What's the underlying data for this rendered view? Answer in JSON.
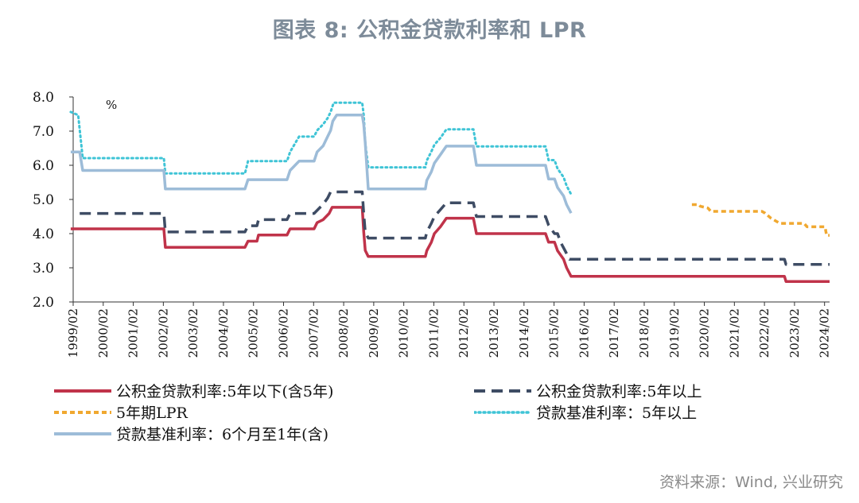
{
  "title": "图表 8:  公积金贷款利率和 LPR",
  "source": "资料来源：Wind, 兴业研究",
  "chart_data": {
    "type": "line",
    "unit_label": "%",
    "ylim": [
      2.0,
      8.0
    ],
    "yticks": [
      "2.0",
      "3.0",
      "4.0",
      "5.0",
      "6.0",
      "7.0",
      "8.0"
    ],
    "x_start": 1999.083,
    "x_end": 2024.25,
    "xtick_labels": [
      "1999/02",
      "2000/02",
      "2001/02",
      "2002/02",
      "2003/02",
      "2004/02",
      "2005/02",
      "2006/02",
      "2007/02",
      "2008/02",
      "2009/02",
      "2010/02",
      "2011/02",
      "2012/02",
      "2013/02",
      "2014/02",
      "2015/02",
      "2016/02",
      "2017/02",
      "2018/02",
      "2019/02",
      "2020/02",
      "2021/02",
      "2022/02",
      "2023/02",
      "2024/02"
    ],
    "grid": false,
    "series": [
      {
        "name": "公积金贷款利率:5年以下(含5年)",
        "color": "#c0334a",
        "style": "solid",
        "points": [
          [
            1999.0,
            4.14
          ],
          [
            2002.1,
            4.14
          ],
          [
            2002.15,
            3.6
          ],
          [
            2004.8,
            3.6
          ],
          [
            2004.9,
            3.78
          ],
          [
            2005.2,
            3.78
          ],
          [
            2005.25,
            3.96
          ],
          [
            2006.2,
            3.96
          ],
          [
            2006.3,
            4.14
          ],
          [
            2007.1,
            4.14
          ],
          [
            2007.2,
            4.32
          ],
          [
            2007.4,
            4.41
          ],
          [
            2007.6,
            4.59
          ],
          [
            2007.7,
            4.77
          ],
          [
            2008.7,
            4.77
          ],
          [
            2008.75,
            4.05
          ],
          [
            2008.8,
            3.51
          ],
          [
            2008.9,
            3.33
          ],
          [
            2010.8,
            3.33
          ],
          [
            2010.85,
            3.5
          ],
          [
            2011.0,
            3.75
          ],
          [
            2011.1,
            4.0
          ],
          [
            2011.3,
            4.2
          ],
          [
            2011.5,
            4.45
          ],
          [
            2012.4,
            4.45
          ],
          [
            2012.5,
            4.0
          ],
          [
            2014.8,
            4.0
          ],
          [
            2014.9,
            3.75
          ],
          [
            2015.1,
            3.75
          ],
          [
            2015.2,
            3.5
          ],
          [
            2015.4,
            3.25
          ],
          [
            2015.5,
            3.0
          ],
          [
            2015.65,
            2.75
          ],
          [
            2022.75,
            2.75
          ],
          [
            2022.8,
            2.6
          ],
          [
            2024.25,
            2.6
          ]
        ]
      },
      {
        "name": "公积金贷款利率:5年以上",
        "color": "#3e4c64",
        "style": "dashed",
        "points": [
          [
            1999.3,
            4.59
          ],
          [
            2002.1,
            4.59
          ],
          [
            2002.15,
            4.05
          ],
          [
            2004.8,
            4.05
          ],
          [
            2004.9,
            4.23
          ],
          [
            2005.2,
            4.23
          ],
          [
            2005.25,
            4.41
          ],
          [
            2006.2,
            4.41
          ],
          [
            2006.3,
            4.59
          ],
          [
            2007.1,
            4.59
          ],
          [
            2007.3,
            4.77
          ],
          [
            2007.4,
            4.86
          ],
          [
            2007.55,
            5.04
          ],
          [
            2007.65,
            5.22
          ],
          [
            2008.7,
            5.22
          ],
          [
            2008.75,
            4.59
          ],
          [
            2008.8,
            4.05
          ],
          [
            2008.9,
            3.87
          ],
          [
            2010.8,
            3.87
          ],
          [
            2010.85,
            4.05
          ],
          [
            2011.0,
            4.3
          ],
          [
            2011.1,
            4.5
          ],
          [
            2011.3,
            4.7
          ],
          [
            2011.5,
            4.9
          ],
          [
            2012.4,
            4.9
          ],
          [
            2012.5,
            4.5
          ],
          [
            2014.8,
            4.5
          ],
          [
            2014.9,
            4.25
          ],
          [
            2015.1,
            4.0
          ],
          [
            2015.2,
            4.0
          ],
          [
            2015.3,
            3.75
          ],
          [
            2015.45,
            3.5
          ],
          [
            2015.6,
            3.25
          ],
          [
            2022.75,
            3.25
          ],
          [
            2022.8,
            3.1
          ],
          [
            2024.25,
            3.1
          ]
        ]
      },
      {
        "name": "5年期LPR",
        "color": "#f0a830",
        "style": "dashed",
        "points": [
          [
            2019.67,
            4.85
          ],
          [
            2019.9,
            4.85
          ],
          [
            2019.95,
            4.8
          ],
          [
            2020.2,
            4.75
          ],
          [
            2020.3,
            4.65
          ],
          [
            2022.0,
            4.65
          ],
          [
            2022.1,
            4.6
          ],
          [
            2022.3,
            4.45
          ],
          [
            2022.6,
            4.3
          ],
          [
            2023.4,
            4.3
          ],
          [
            2023.5,
            4.2
          ],
          [
            2024.1,
            4.2
          ],
          [
            2024.15,
            3.95
          ],
          [
            2024.25,
            3.95
          ]
        ]
      },
      {
        "name": "贷款基准利率：5年以上",
        "color": "#3fc4d6",
        "style": "dotted",
        "points": [
          [
            1999.0,
            7.56
          ],
          [
            1999.25,
            7.47
          ],
          [
            1999.4,
            6.21
          ],
          [
            2002.1,
            6.21
          ],
          [
            2002.15,
            5.76
          ],
          [
            2004.8,
            5.76
          ],
          [
            2004.9,
            6.12
          ],
          [
            2006.2,
            6.12
          ],
          [
            2006.3,
            6.39
          ],
          [
            2006.6,
            6.84
          ],
          [
            2007.1,
            6.84
          ],
          [
            2007.2,
            7.02
          ],
          [
            2007.4,
            7.2
          ],
          [
            2007.55,
            7.38
          ],
          [
            2007.65,
            7.56
          ],
          [
            2007.75,
            7.83
          ],
          [
            2008.7,
            7.83
          ],
          [
            2008.75,
            7.47
          ],
          [
            2008.8,
            6.66
          ],
          [
            2008.9,
            5.94
          ],
          [
            2010.8,
            5.94
          ],
          [
            2010.85,
            6.14
          ],
          [
            2011.0,
            6.4
          ],
          [
            2011.1,
            6.6
          ],
          [
            2011.3,
            6.8
          ],
          [
            2011.5,
            7.05
          ],
          [
            2012.4,
            7.05
          ],
          [
            2012.5,
            6.55
          ],
          [
            2014.8,
            6.55
          ],
          [
            2014.9,
            6.15
          ],
          [
            2015.1,
            6.15
          ],
          [
            2015.2,
            5.9
          ],
          [
            2015.4,
            5.65
          ],
          [
            2015.5,
            5.4
          ],
          [
            2015.65,
            5.15
          ]
        ]
      },
      {
        "name": "贷款基准利率：6个月至1年(含)",
        "color": "#9dbcd8",
        "style": "solid",
        "points": [
          [
            1999.0,
            6.39
          ],
          [
            1999.3,
            6.39
          ],
          [
            1999.4,
            5.85
          ],
          [
            2002.1,
            5.85
          ],
          [
            2002.15,
            5.31
          ],
          [
            2004.8,
            5.31
          ],
          [
            2004.9,
            5.58
          ],
          [
            2006.2,
            5.58
          ],
          [
            2006.3,
            5.85
          ],
          [
            2006.6,
            6.12
          ],
          [
            2007.1,
            6.12
          ],
          [
            2007.2,
            6.39
          ],
          [
            2007.4,
            6.57
          ],
          [
            2007.55,
            6.84
          ],
          [
            2007.65,
            7.02
          ],
          [
            2007.72,
            7.29
          ],
          [
            2007.85,
            7.47
          ],
          [
            2008.7,
            7.47
          ],
          [
            2008.75,
            7.2
          ],
          [
            2008.8,
            6.66
          ],
          [
            2008.9,
            5.31
          ],
          [
            2010.8,
            5.31
          ],
          [
            2010.85,
            5.56
          ],
          [
            2011.0,
            5.81
          ],
          [
            2011.1,
            6.06
          ],
          [
            2011.3,
            6.31
          ],
          [
            2011.5,
            6.56
          ],
          [
            2012.4,
            6.56
          ],
          [
            2012.5,
            6.0
          ],
          [
            2014.8,
            6.0
          ],
          [
            2014.9,
            5.6
          ],
          [
            2015.1,
            5.6
          ],
          [
            2015.2,
            5.35
          ],
          [
            2015.4,
            5.1
          ],
          [
            2015.5,
            4.85
          ],
          [
            2015.65,
            4.6
          ]
        ]
      }
    ]
  }
}
